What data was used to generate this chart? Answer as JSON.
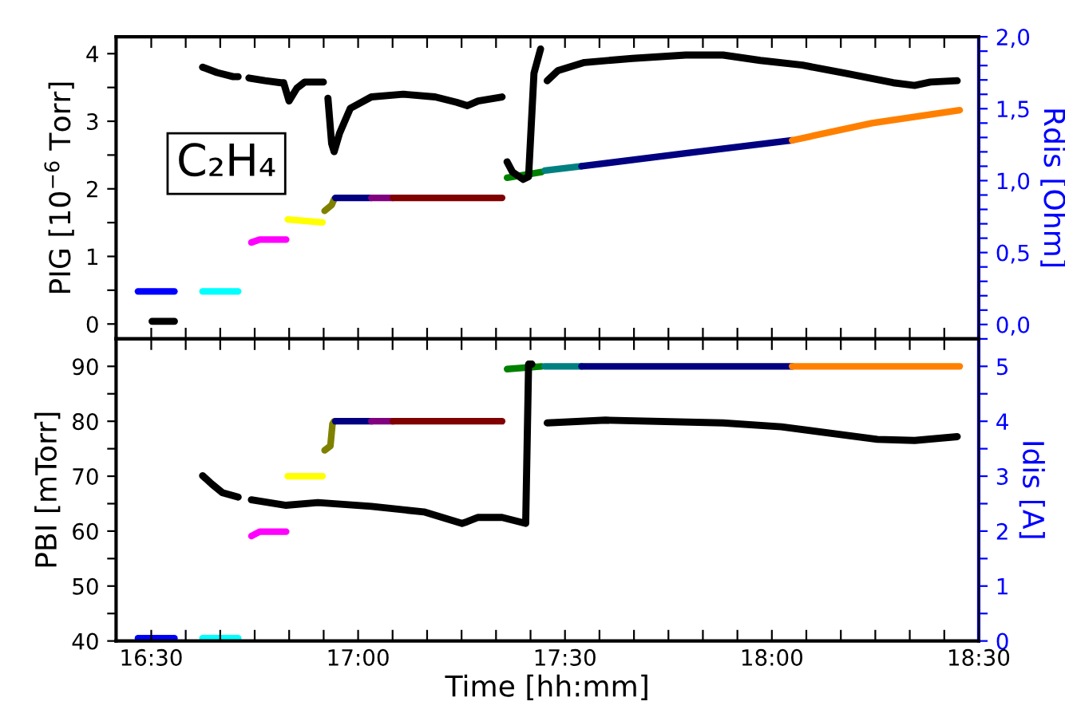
{
  "chart_data": [
    {
      "type": "line",
      "ylabel": "PIG [10$^{−6}$ Torr]",
      "y2label": "Rdis [Ohm]",
      "annotations": [
        "C₂H₄"
      ],
      "tick_labels": "y",
      "line_style": "solid",
      "xlim": [
        16.415,
        18.5
      ],
      "xticks": [
        {
          "value": 16.5,
          "label": null
        },
        {
          "value": 16.5833,
          "label": null
        },
        {
          "value": 16.6667,
          "label": null
        },
        {
          "value": 16.75,
          "label": null
        },
        {
          "value": 16.8333,
          "label": null
        },
        {
          "value": 16.9167,
          "label": null
        },
        {
          "value": 17.0,
          "label": null
        },
        {
          "value": 17.0833,
          "label": null
        },
        {
          "value": 17.1667,
          "label": null
        },
        {
          "value": 17.25,
          "label": null
        },
        {
          "value": 17.3333,
          "label": null
        },
        {
          "value": 17.4167,
          "label": null
        },
        {
          "value": 17.5,
          "label": null
        },
        {
          "value": 17.5833,
          "label": null
        },
        {
          "value": 17.6667,
          "label": null
        },
        {
          "value": 17.75,
          "label": null
        },
        {
          "value": 17.8333,
          "label": null
        },
        {
          "value": 17.9167,
          "label": null
        },
        {
          "value": 18.0,
          "label": null
        },
        {
          "value": 18.0833,
          "label": null
        },
        {
          "value": 18.1667,
          "label": null
        },
        {
          "value": 18.25,
          "label": null
        },
        {
          "value": 18.3333,
          "label": null
        },
        {
          "value": 18.4167,
          "label": null
        },
        {
          "value": 18.5,
          "label": null
        }
      ],
      "ylim": [
        -0.22,
        4.25
      ],
      "yticks": [
        0,
        {
          "value": 0.5,
          "label": null
        },
        1,
        {
          "value": 1.5,
          "label": null
        },
        2,
        {
          "value": 2.5,
          "label": null
        },
        3,
        {
          "value": 3.5,
          "label": null
        },
        4
      ],
      "y2lim": [
        -0.1,
        2.0
      ],
      "y2ticks": [
        {
          "value": 0.0,
          "label": "0,0"
        },
        {
          "value": 0.1,
          "label": null
        },
        {
          "value": 0.2,
          "label": null
        },
        {
          "value": 0.3,
          "label": null
        },
        {
          "value": 0.4,
          "label": null
        },
        {
          "value": 0.5,
          "label": "0,5"
        },
        {
          "value": 0.6,
          "label": null
        },
        {
          "value": 0.7,
          "label": null
        },
        {
          "value": 0.8,
          "label": null
        },
        {
          "value": 0.9,
          "label": null
        },
        {
          "value": 1.0,
          "label": "1,0"
        },
        {
          "value": 1.1,
          "label": null
        },
        {
          "value": 1.2,
          "label": null
        },
        {
          "value": 1.3,
          "label": null
        },
        {
          "value": 1.4,
          "label": null
        },
        {
          "value": 1.5,
          "label": "1,5"
        },
        {
          "value": 1.6,
          "label": null
        },
        {
          "value": 1.7,
          "label": null
        },
        {
          "value": 1.8,
          "label": null
        },
        {
          "value": 1.9,
          "label": null
        },
        {
          "value": 2.0,
          "label": "2,0"
        }
      ],
      "series": [
        {
          "color": "#000000",
          "x": [
            16.502,
            16.556,
            16.59,
            16.624,
            16.659,
            16.698,
            16.71,
            16.723,
            16.736,
            16.775,
            16.813,
            16.82,
            16.833,
            16.852,
            16.871,
            16.916,
            16.921,
            16.927,
            16.936,
            16.942,
            16.955,
            16.981,
            17.032,
            17.109,
            17.186,
            17.238,
            17.264,
            17.29,
            17.348,
            17.354,
            17.36,
            17.373,
            17.399,
            17.412,
            17.425,
            17.441,
            17.449,
            17.457,
            17.483,
            17.547,
            17.663,
            17.792,
            17.882,
            17.972,
            18.074,
            18.178,
            18.293,
            18.345,
            18.383,
            18.448
          ],
          "values": [
            0.04,
            0.04,
            null,
            3.8,
            3.72,
            3.66,
            3.66,
            null,
            3.64,
            3.6,
            3.57,
            3.57,
            3.3,
            3.49,
            3.58,
            3.58,
            null,
            3.34,
            2.67,
            2.55,
            2.82,
            3.19,
            3.36,
            3.4,
            3.36,
            3.28,
            3.23,
            3.3,
            3.36,
            null,
            2.4,
            2.25,
            2.14,
            2.18,
            3.71,
            4.07,
            null,
            3.6,
            3.75,
            3.87,
            3.93,
            3.98,
            3.98,
            3.9,
            3.83,
            3.71,
            3.57,
            3.53,
            3.58,
            3.6
          ]
        },
        {
          "color": "#0000ff",
          "axis": "y2",
          "x": [
            16.468,
            16.556
          ],
          "values": [
            0.23,
            0.23
          ]
        },
        {
          "color": "#00ffff",
          "axis": "y2",
          "x": [
            16.624,
            16.71
          ],
          "values": [
            0.23,
            0.23
          ]
        },
        {
          "color": "#ff00ff",
          "axis": "y2",
          "x": [
            16.742,
            16.762,
            16.826
          ],
          "values": [
            0.57,
            0.59,
            0.59
          ]
        },
        {
          "color": "#ffff00",
          "axis": "y2",
          "x": [
            16.83,
            16.914
          ],
          "values": [
            0.73,
            0.71
          ]
        },
        {
          "color": "#808000",
          "axis": "y2",
          "x": [
            16.919,
            16.936,
            16.942
          ],
          "values": [
            0.79,
            0.83,
            0.87
          ]
        },
        {
          "color": "#000080",
          "axis": "y2",
          "x": [
            16.945,
            17.032
          ],
          "values": [
            0.88,
            0.88
          ]
        },
        {
          "color": "#800080",
          "axis": "y2",
          "x": [
            17.032,
            17.084
          ],
          "values": [
            0.88,
            0.88
          ]
        },
        {
          "color": "#800000",
          "axis": "y2",
          "x": [
            17.084,
            17.348
          ],
          "values": [
            0.88,
            0.88
          ]
        },
        {
          "color": "#008000",
          "axis": "y2",
          "x": [
            17.36,
            17.444
          ],
          "values": [
            1.02,
            1.06
          ]
        },
        {
          "color": "#008080",
          "axis": "y2",
          "x": [
            17.451,
            17.54
          ],
          "values": [
            1.07,
            1.1
          ]
        },
        {
          "color": "#000080",
          "axis": "y2",
          "x": [
            17.54,
            17.792,
            18.049
          ],
          "values": [
            1.1,
            1.19,
            1.28
          ]
        },
        {
          "color": "#ff8000",
          "axis": "y2",
          "x": [
            18.049,
            18.242,
            18.454
          ],
          "values": [
            1.28,
            1.4,
            1.49
          ]
        }
      ]
    },
    {
      "type": "line",
      "xlabel": "Time [hh:mm]",
      "ylabel": "PBI [mTorr]",
      "y2label": "Idis [A]",
      "line_style": "solid",
      "xlim": [
        16.415,
        18.5
      ],
      "xticks": [
        {
          "value": 16.5,
          "label": "16:30"
        },
        {
          "value": 16.5833,
          "label": null
        },
        {
          "value": 16.6667,
          "label": null
        },
        {
          "value": 16.75,
          "label": null
        },
        {
          "value": 16.8333,
          "label": null
        },
        {
          "value": 16.9167,
          "label": null
        },
        {
          "value": 17.0,
          "label": "17:00"
        },
        {
          "value": 17.0833,
          "label": null
        },
        {
          "value": 17.1667,
          "label": null
        },
        {
          "value": 17.25,
          "label": null
        },
        {
          "value": 17.3333,
          "label": null
        },
        {
          "value": 17.4167,
          "label": null
        },
        {
          "value": 17.5,
          "label": "17:30"
        },
        {
          "value": 17.5833,
          "label": null
        },
        {
          "value": 17.6667,
          "label": null
        },
        {
          "value": 17.75,
          "label": null
        },
        {
          "value": 17.8333,
          "label": null
        },
        {
          "value": 17.9167,
          "label": null
        },
        {
          "value": 18.0,
          "label": "18:00"
        },
        {
          "value": 18.0833,
          "label": null
        },
        {
          "value": 18.1667,
          "label": null
        },
        {
          "value": 18.25,
          "label": null
        },
        {
          "value": 18.3333,
          "label": null
        },
        {
          "value": 18.4167,
          "label": null
        },
        {
          "value": 18.5,
          "label": "18:30"
        }
      ],
      "ylim": [
        40,
        95
      ],
      "yticks": [
        40,
        {
          "value": 45,
          "label": null
        },
        50,
        {
          "value": 55,
          "label": null
        },
        60,
        {
          "value": 65,
          "label": null
        },
        70,
        {
          "value": 75,
          "label": null
        },
        80,
        {
          "value": 85,
          "label": null
        },
        90
      ],
      "y2lim": [
        0,
        5.5
      ],
      "y2ticks": [
        0,
        {
          "value": 0.5,
          "label": null
        },
        1,
        {
          "value": 1.5,
          "label": null
        },
        2,
        {
          "value": 2.5,
          "label": null
        },
        3,
        {
          "value": 3.5,
          "label": null
        },
        4,
        {
          "value": 4.5,
          "label": null
        },
        5,
        {
          "value": 5.5,
          "label": null
        }
      ],
      "series": [
        {
          "color": "#000000",
          "x": [
            16.624,
            16.646,
            16.672,
            16.71,
            16.726,
            16.742,
            16.826,
            16.903,
            17.032,
            17.159,
            17.251,
            17.263,
            17.29,
            17.348,
            17.405,
            17.412,
            17.42,
            17.434,
            17.457,
            17.598,
            17.882,
            18.023,
            18.255,
            18.345,
            18.448
          ],
          "values": [
            70.1,
            68.6,
            67.0,
            66.2,
            null,
            65.7,
            64.7,
            65.2,
            64.5,
            63.5,
            61.4,
            61.7,
            62.5,
            62.5,
            61.4,
            90.4,
            90.4,
            null,
            79.7,
            80.2,
            79.7,
            79.0,
            76.7,
            76.5,
            77.2
          ]
        },
        {
          "color": "#0000ff",
          "axis": "y2",
          "x": [
            16.468,
            16.556
          ],
          "values": [
            0.05,
            0.05
          ]
        },
        {
          "color": "#00ffff",
          "axis": "y2",
          "x": [
            16.624,
            16.71
          ],
          "values": [
            0.05,
            0.05
          ]
        },
        {
          "color": "#ff00ff",
          "axis": "y2",
          "x": [
            16.742,
            16.762,
            16.826
          ],
          "values": [
            1.91,
            1.99,
            1.99
          ]
        },
        {
          "color": "#ffff00",
          "axis": "y2",
          "x": [
            16.83,
            16.914
          ],
          "values": [
            3.0,
            3.0
          ]
        },
        {
          "color": "#808000",
          "axis": "y2",
          "x": [
            16.919,
            16.933,
            16.938,
            16.942
          ],
          "values": [
            3.47,
            3.55,
            3.95,
            4.0
          ]
        },
        {
          "color": "#000080",
          "axis": "y2",
          "x": [
            16.945,
            17.032
          ],
          "values": [
            4.0,
            4.0
          ]
        },
        {
          "color": "#800080",
          "axis": "y2",
          "x": [
            17.032,
            17.084
          ],
          "values": [
            4.0,
            4.0
          ]
        },
        {
          "color": "#800000",
          "axis": "y2",
          "x": [
            17.084,
            17.348
          ],
          "values": [
            4.0,
            4.0
          ]
        },
        {
          "color": "#008000",
          "axis": "y2",
          "x": [
            17.36,
            17.444
          ],
          "values": [
            4.95,
            5.0
          ]
        },
        {
          "color": "#008080",
          "axis": "y2",
          "x": [
            17.451,
            17.54
          ],
          "values": [
            5.0,
            5.0
          ]
        },
        {
          "color": "#000080",
          "axis": "y2",
          "x": [
            17.54,
            18.049
          ],
          "values": [
            5.0,
            5.0
          ]
        },
        {
          "color": "#ff8000",
          "axis": "y2",
          "x": [
            18.049,
            18.454
          ],
          "values": [
            5.0,
            5.0
          ]
        }
      ]
    }
  ]
}
